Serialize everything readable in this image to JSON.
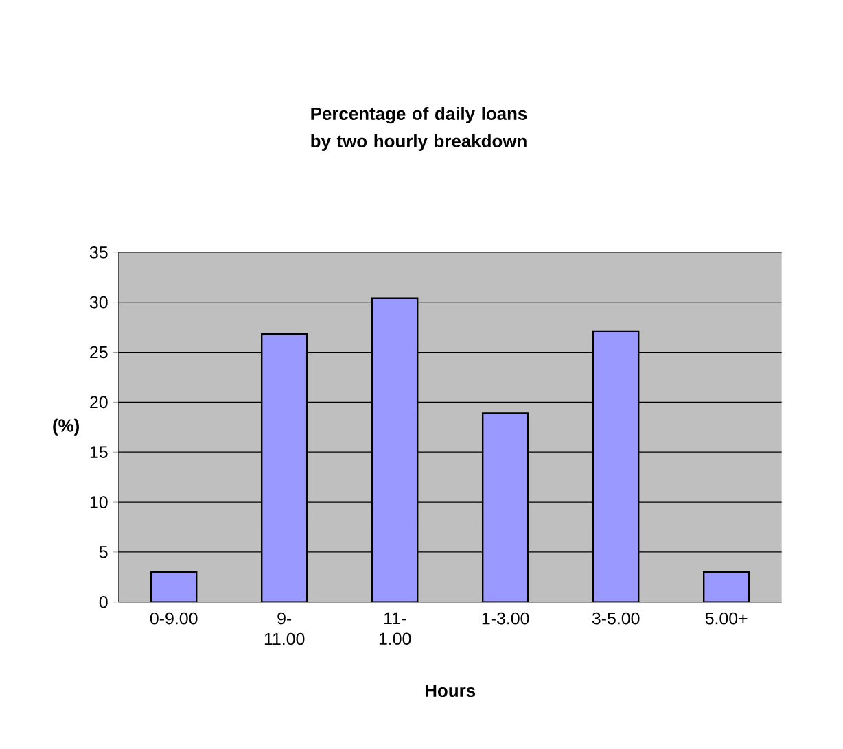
{
  "chart_data": {
    "type": "bar",
    "title": "Percentage of daily loans by two hourly breakdown",
    "xlabel": "Hours",
    "ylabel": "(%)",
    "categories": [
      "0-9.00",
      "9-11.00",
      "11-1.00",
      "1-3.00",
      "3-5.00",
      "5.00+"
    ],
    "values": [
      3.0,
      26.8,
      30.4,
      18.9,
      27.1,
      3.0
    ],
    "color": "#9999ff",
    "ylim": [
      0,
      35
    ],
    "yticks": [
      0,
      5,
      10,
      15,
      20,
      25,
      30,
      35
    ],
    "grid": "y"
  }
}
